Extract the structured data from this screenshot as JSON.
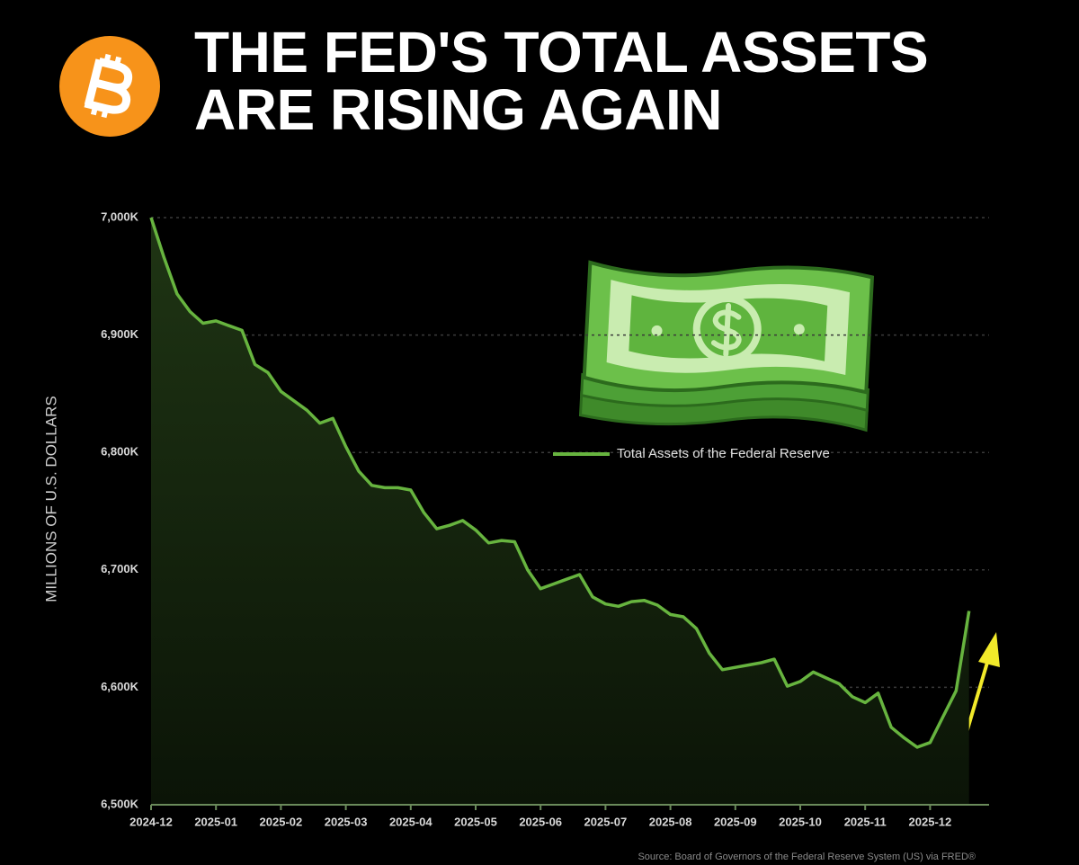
{
  "chart_data": {
    "type": "area",
    "title": "THE FED'S TOTAL ASSETS ARE RISING AGAIN",
    "y_label": "MILLIONS OF U.S. DOLLARS",
    "source": "Source: Board of Governors of the Federal Reserve System (US) via FRED®",
    "categories": [
      "2024-12",
      null,
      null,
      null,
      null,
      "2025-01",
      null,
      null,
      null,
      null,
      "2025-02",
      null,
      null,
      null,
      null,
      "2025-03",
      null,
      null,
      null,
      null,
      "2025-04",
      null,
      null,
      null,
      null,
      "2025-05",
      null,
      null,
      null,
      null,
      "2025-06",
      null,
      null,
      null,
      null,
      "2025-07",
      null,
      null,
      null,
      null,
      "2025-08",
      null,
      null,
      null,
      null,
      "2025-09",
      null,
      null,
      null,
      null,
      "2025-10",
      null,
      null,
      null,
      null,
      "2025-11",
      null,
      null,
      null,
      null,
      "2025-12",
      null,
      null,
      null
    ],
    "series": [
      {
        "name": "Total Assets of the Federal Reserve",
        "color": "#67b43f",
        "values": [
          7000,
          6966,
          6935,
          6920,
          6910,
          6912,
          6908,
          6904,
          6875,
          6868,
          6852,
          6844,
          6836,
          6825,
          6829,
          6805,
          6784,
          6772,
          6770,
          6770,
          6768,
          6749,
          6735,
          6738,
          6742,
          6734,
          6723,
          6725,
          6724,
          6700,
          6684,
          6688,
          6692,
          6696,
          6677,
          6671,
          6669,
          6673,
          6674,
          6670,
          6662,
          6660,
          6650,
          6629,
          6615,
          6617,
          6619,
          6621,
          6624,
          6601,
          6605,
          6613,
          6608,
          6603,
          6592,
          6587,
          6595,
          6566,
          6557,
          6549,
          6553,
          6575,
          6597,
          6665
        ]
      }
    ],
    "ylim": [
      6500,
      7000
    ],
    "yticks": [
      {
        "value": 6500,
        "label": "6,500K"
      },
      {
        "value": 6600,
        "label": "6,600K"
      },
      {
        "value": 6700,
        "label": "6,700K"
      },
      {
        "value": 6800,
        "label": "6,800K"
      },
      {
        "value": 6900,
        "label": "6,900K"
      },
      {
        "value": 7000,
        "label": "7,000K"
      }
    ],
    "grid": true
  }
}
